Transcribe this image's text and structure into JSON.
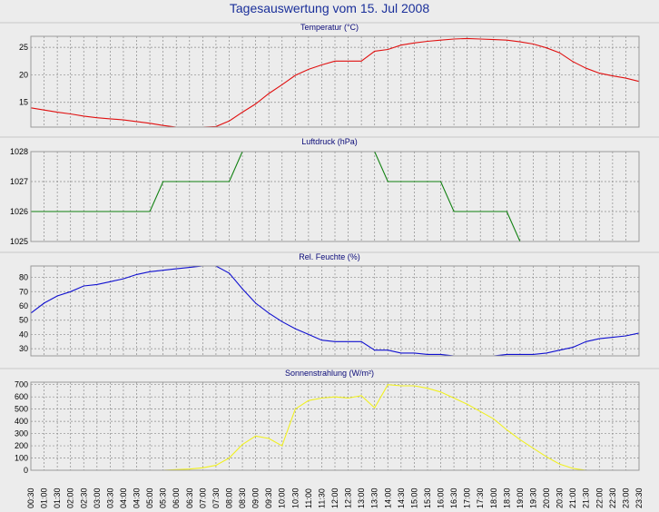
{
  "title": "Tagesauswertung vom 15. Jul 2008",
  "colors": {
    "temperature": "#e01010",
    "pressure": "#108010",
    "humidity": "#1010d0",
    "radiation": "#f0f020",
    "plot_bg": "#ececec",
    "grid": "#8a8a8a",
    "title_text": "#0a0a78"
  },
  "chart_data": {
    "type": "line",
    "x_labels": [
      "00:30",
      "01:00",
      "01:30",
      "02:00",
      "02:30",
      "03:00",
      "03:30",
      "04:00",
      "04:30",
      "05:00",
      "05:30",
      "06:00",
      "06:30",
      "07:00",
      "07:30",
      "08:00",
      "08:30",
      "09:00",
      "09:30",
      "10:00",
      "10:30",
      "11:00",
      "11:30",
      "12:00",
      "12:30",
      "13:00",
      "13:30",
      "14:00",
      "14:30",
      "15:00",
      "15:30",
      "16:00",
      "16:30",
      "17:00",
      "17:30",
      "18:00",
      "18:30",
      "19:00",
      "19:30",
      "20:00",
      "20:30",
      "21:00",
      "21:30",
      "22:00",
      "22:30",
      "23:00",
      "23:30"
    ],
    "panels": [
      {
        "title": "Temperatur (°C)",
        "series_key": "temperature",
        "ylim": [
          10.5,
          27
        ],
        "yticks": [
          15,
          20,
          25
        ],
        "values": [
          14.0,
          13.6,
          13.2,
          12.9,
          12.5,
          12.2,
          12.0,
          11.8,
          11.5,
          11.2,
          10.8,
          10.5,
          10.4,
          10.5,
          10.6,
          11.6,
          13.2,
          14.7,
          16.6,
          18.2,
          19.9,
          21.0,
          21.8,
          22.5,
          22.5,
          22.5,
          24.3,
          24.6,
          25.4,
          25.8,
          26.1,
          26.3,
          26.5,
          26.6,
          26.5,
          26.4,
          26.3,
          26.0,
          25.6,
          24.9,
          24.0,
          22.4,
          21.2,
          20.3,
          19.8,
          19.4,
          18.8
        ]
      },
      {
        "title": "Luftdruck (hPa)",
        "series_key": "pressure",
        "ylim": [
          1025,
          1028
        ],
        "yticks": [
          1025,
          1026,
          1027,
          1028
        ],
        "values": [
          1026,
          1026,
          1026,
          1026,
          1026,
          1026,
          1026,
          1026,
          1026,
          1026,
          1027,
          1027,
          1027,
          1027,
          1027,
          1027,
          1028.1,
          1028.2,
          1028.2,
          1028.2,
          1028.2,
          1028.2,
          1028.2,
          1028.2,
          1028.2,
          1028.2,
          1028,
          1027,
          1027,
          1027,
          1027,
          1027,
          1026,
          1026,
          1026,
          1026,
          1026,
          1024.9,
          1024.8,
          1024.8,
          1024.8,
          1024.8,
          1024.8,
          1024.8,
          1024.8,
          1024.8,
          1024.8
        ]
      },
      {
        "title": "Rel. Feuchte (%)",
        "series_key": "humidity",
        "ylim": [
          25,
          88
        ],
        "yticks": [
          30,
          40,
          50,
          60,
          70,
          80
        ],
        "values": [
          55,
          62,
          67,
          70,
          74,
          75,
          77,
          79,
          82,
          84,
          85,
          86,
          87,
          88,
          88,
          83,
          72,
          62,
          55,
          49,
          44,
          40,
          36,
          35,
          35,
          35,
          29,
          29,
          27,
          27,
          26,
          26,
          25,
          25,
          25,
          25,
          26,
          26,
          26,
          27,
          29,
          31,
          35,
          37,
          38,
          39,
          41
        ]
      },
      {
        "title": "Sonnenstrahlung (W/m²)",
        "series_key": "radiation",
        "ylim": [
          0,
          720
        ],
        "yticks": [
          0,
          100,
          200,
          300,
          400,
          500,
          600,
          700
        ],
        "values": [
          0,
          0,
          0,
          0,
          0,
          0,
          0,
          0,
          0,
          0,
          0,
          5,
          10,
          20,
          40,
          100,
          210,
          280,
          260,
          200,
          500,
          570,
          590,
          600,
          590,
          610,
          510,
          700,
          690,
          690,
          670,
          640,
          590,
          540,
          480,
          420,
          330,
          250,
          180,
          110,
          50,
          15,
          0,
          0,
          0,
          0,
          0
        ]
      }
    ],
    "grid": true,
    "legend": "none"
  }
}
